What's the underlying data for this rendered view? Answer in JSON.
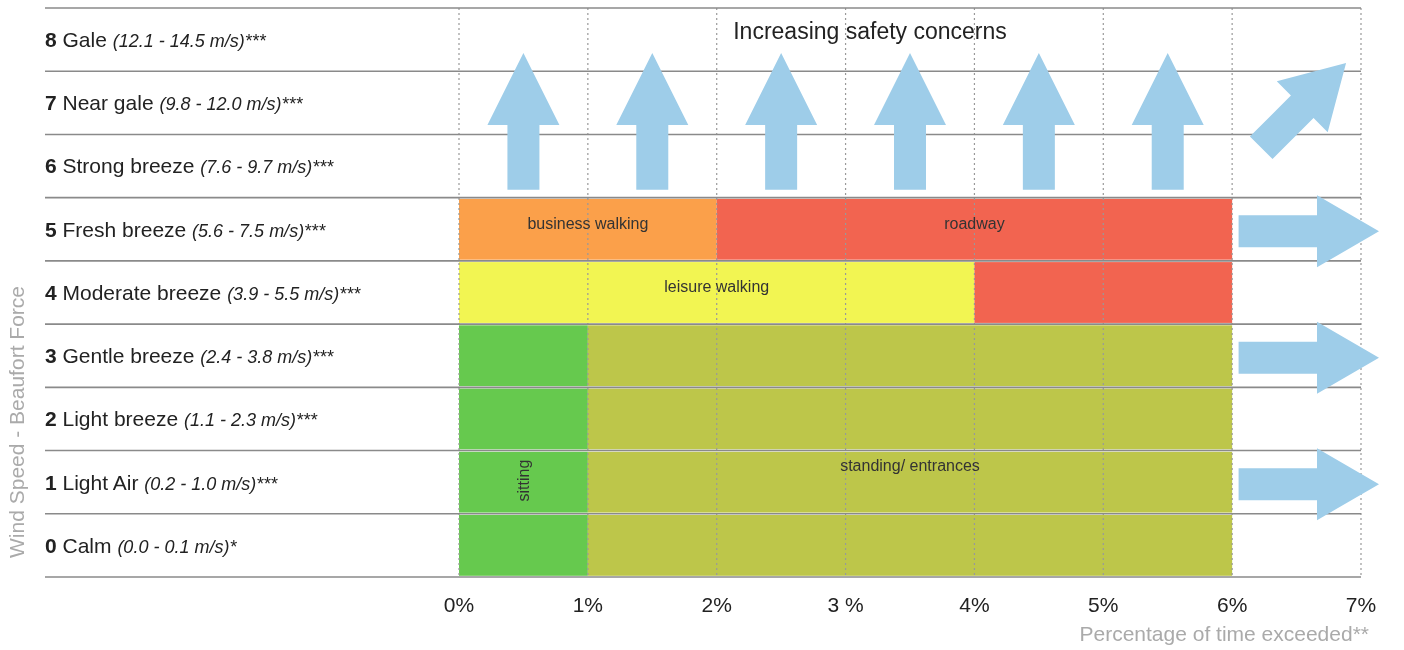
{
  "chart_data": {
    "type": "bar",
    "orientation": "horizontal",
    "stacked": true,
    "title": "Increasing safety concerns",
    "xlabel": "Percentage of time exceeded**",
    "ylabel": "Wind Speed - Beaufort Force",
    "categories": [
      "8 Gale (12.1 - 14.5 m/s)***",
      "7 Near gale (9.8 - 12.0 m/s)***",
      "6 Strong breeze (7.6 - 9.7 m/s)***",
      "5 Fresh breeze (5.6 - 7.5 m/s)***",
      "4 Moderate breeze (3.9 - 5.5 m/s)***",
      "3 Gentle breeze (2.4 - 3.8 m/s)***",
      "2 Light breeze (1.1 - 2.3 m/s)***",
      "1 Light Air (0.2 - 1.0 m/s)***",
      "0 Calm (0.0 - 0.1 m/s)*"
    ],
    "series": [
      {
        "name": "sitting",
        "color": "#66c94e",
        "values": [
          null,
          null,
          null,
          null,
          null,
          1,
          1,
          1,
          1
        ]
      },
      {
        "name": "standing/ entrances",
        "color": "#bdc64a",
        "values": [
          null,
          null,
          null,
          null,
          null,
          5,
          5,
          5,
          5
        ]
      },
      {
        "name": "leisure walking",
        "color": "#f2f552",
        "values": [
          null,
          null,
          null,
          null,
          4,
          null,
          null,
          null,
          null
        ]
      },
      {
        "name": "business walking",
        "color": "#fba04a",
        "values": [
          null,
          null,
          null,
          2,
          null,
          null,
          null,
          null,
          null
        ]
      },
      {
        "name": "roadway",
        "color": "#f26450",
        "values": [
          null,
          null,
          null,
          4,
          2,
          null,
          null,
          null,
          null
        ]
      }
    ],
    "xlim": [
      0,
      7
    ],
    "xticks": [
      {
        "value": 0,
        "label": "0%"
      },
      {
        "value": 1,
        "label": "1%"
      },
      {
        "value": 2,
        "label": "2%"
      },
      {
        "value": 3,
        "label": "3 %"
      },
      {
        "value": 4,
        "label": "4%"
      },
      {
        "value": 5,
        "label": "5%"
      },
      {
        "value": 6,
        "label": "6%"
      },
      {
        "value": 7,
        "label": "7%"
      }
    ],
    "grid": true
  }
}
